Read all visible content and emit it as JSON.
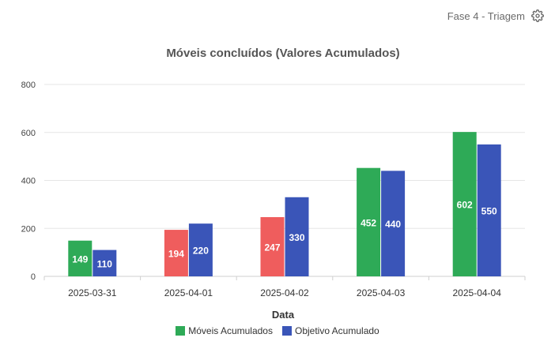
{
  "header": {
    "phase_label": "Fase 4 - Triagem",
    "settings_icon": "gear-icon"
  },
  "chart_data": {
    "type": "bar",
    "title": "Móveis concluídos (Valores Acumulados)",
    "xlabel": "Data",
    "ylabel": "",
    "ylim": [
      0,
      800
    ],
    "yticks": [
      0,
      200,
      400,
      600,
      800
    ],
    "categories": [
      "2025-03-31",
      "2025-04-01",
      "2025-04-02",
      "2025-04-03",
      "2025-04-04"
    ],
    "series": [
      {
        "name": "Móveis Acumulados",
        "values": [
          149,
          194,
          247,
          452,
          602
        ],
        "color": "#2eaa57",
        "point_colors": [
          "#2eaa57",
          "#ef5d5d",
          "#ef5d5d",
          "#2eaa57",
          "#2eaa57"
        ]
      },
      {
        "name": "Objetivo Acumulado",
        "values": [
          110,
          220,
          330,
          440,
          550
        ],
        "color": "#3a55b8"
      }
    ],
    "legend": "bottom-center",
    "grid": true
  }
}
